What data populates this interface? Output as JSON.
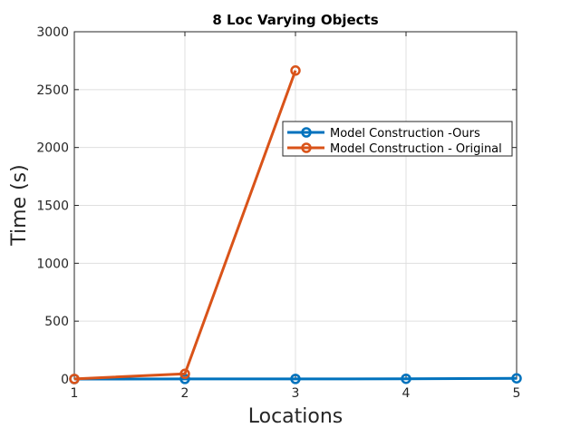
{
  "chart_data": {
    "type": "line",
    "title": "8 Loc Varying Objects",
    "xlabel": "Locations",
    "ylabel": "Time (s)",
    "xlim": [
      1,
      5
    ],
    "ylim": [
      0,
      3000
    ],
    "xticks": [
      "1",
      "2",
      "3",
      "4",
      "5"
    ],
    "yticks": [
      "0",
      "500",
      "1000",
      "1500",
      "2000",
      "2500",
      "3000"
    ],
    "grid": true,
    "legend_position": "right",
    "series": [
      {
        "name": "Model Construction -Ours",
        "color": "#0072BD",
        "x": [
          1,
          2,
          3,
          4,
          5
        ],
        "y": [
          0,
          1,
          1,
          2,
          6
        ]
      },
      {
        "name": "Model Construction - Original",
        "color": "#D95319",
        "x": [
          1,
          2,
          3
        ],
        "y": [
          1,
          45,
          2665
        ]
      }
    ]
  }
}
